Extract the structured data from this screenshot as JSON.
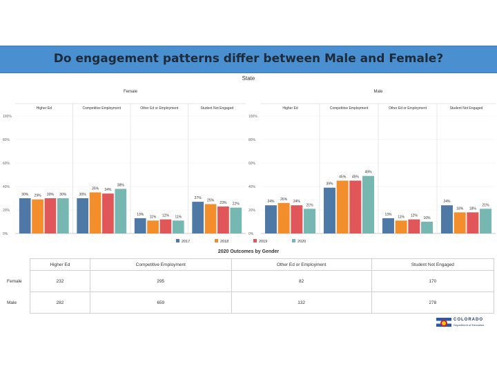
{
  "title": "Do engagement patterns differ between Male and Female?",
  "colors": {
    "2017": "#4e79a7",
    "2018": "#f28e2b",
    "2019": "#e15759",
    "2020": "#76b7b2",
    "banner": "#4a8fd0"
  },
  "chart_data": {
    "type": "bar",
    "title": "State",
    "panels": [
      {
        "name": "Female",
        "categories": [
          "Higher Ed",
          "Competitive Employment",
          "Other Ed or Employment",
          "Student Not Engaged"
        ],
        "series": [
          {
            "name": "2017",
            "values": [
              30,
              30,
              13,
              27
            ]
          },
          {
            "name": "2018",
            "values": [
              29,
              35,
              11,
              25
            ]
          },
          {
            "name": "2019",
            "values": [
              30,
              34,
              12,
              23
            ]
          },
          {
            "name": "2020",
            "values": [
              30,
              38,
              11,
              22
            ]
          }
        ]
      },
      {
        "name": "Male",
        "categories": [
          "Higher Ed",
          "Competitive Employment",
          "Other Ed or Employment",
          "Student Not Engaged"
        ],
        "series": [
          {
            "name": "2017",
            "values": [
              24,
              39,
              13,
              24
            ]
          },
          {
            "name": "2018",
            "values": [
              26,
              45,
              11,
              18
            ]
          },
          {
            "name": "2019",
            "values": [
              24,
              45,
              12,
              18
            ]
          },
          {
            "name": "2020",
            "values": [
              21,
              49,
              10,
              21
            ]
          }
        ]
      }
    ],
    "ylim": [
      0,
      100
    ],
    "yticks": [
      0,
      20,
      40,
      60,
      80,
      100
    ],
    "ytick_labels": [
      "0%",
      "20%",
      "40%",
      "60%",
      "80%",
      "100%"
    ],
    "value_suffix": "%",
    "legend": [
      "2017",
      "2018",
      "2019",
      "2020"
    ],
    "legend_position": "bottom-center"
  },
  "table": {
    "title": "2020 Outcomes by Gender",
    "columns": [
      "Higher Ed",
      "Competitive Employment",
      "Other Ed or Employment",
      "Student Not Engaged"
    ],
    "rows": [
      {
        "label": "Female",
        "values": [
          "232",
          "295",
          "82",
          "170"
        ]
      },
      {
        "label": "Male",
        "values": [
          "282",
          "659",
          "132",
          "278"
        ]
      }
    ]
  },
  "logo": {
    "line1": "COLORADO",
    "line2": "Department of Education"
  }
}
